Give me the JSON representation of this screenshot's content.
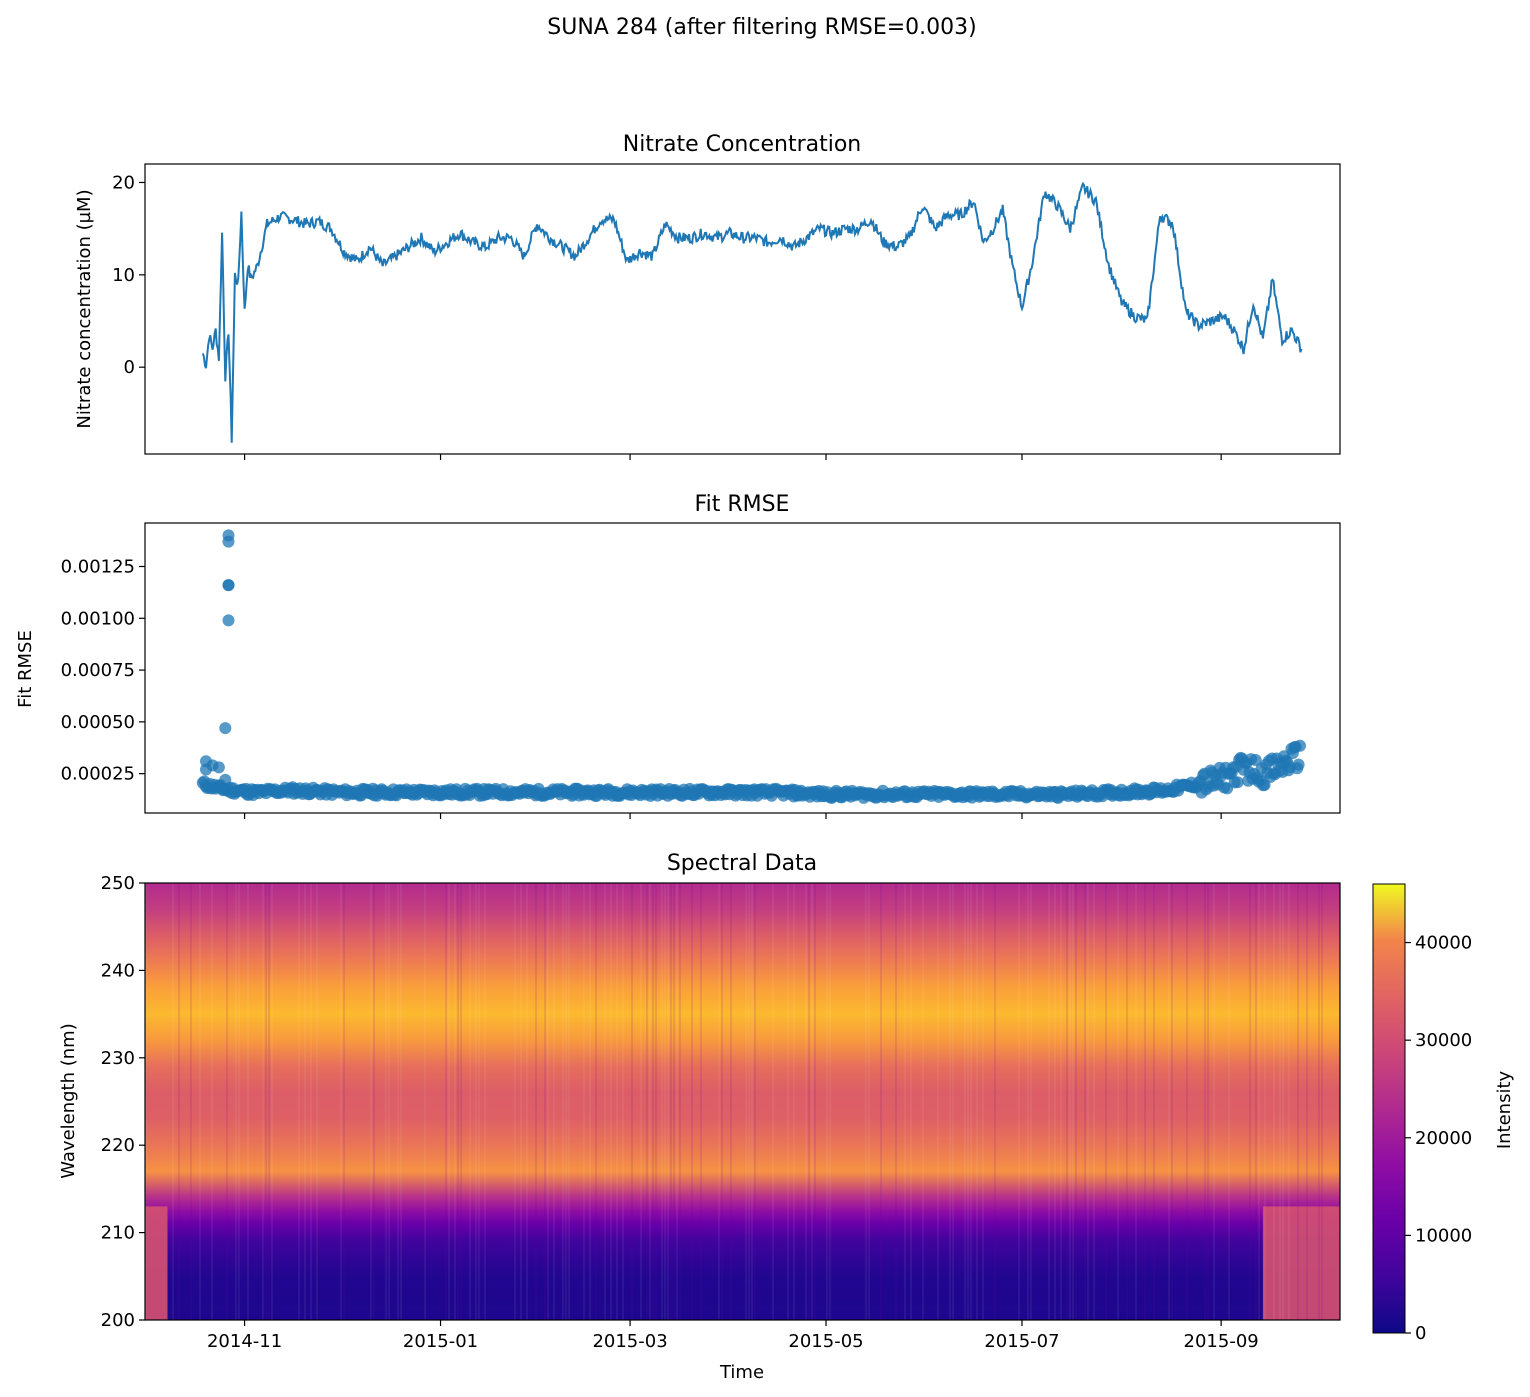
{
  "figure": {
    "suptitle": "SUNA 284 (after filtering RMSE=0.003)"
  },
  "chart_data": [
    {
      "type": "line",
      "title": "Nitrate Concentration",
      "xlabel": "",
      "ylabel": "Nitrate concentration (µM)",
      "ylim": [
        -9.4,
        22.0
      ],
      "xlim": [
        "2014-10-01",
        "2015-10-08"
      ],
      "yticks": [
        0,
        10,
        20
      ],
      "ytick_labels": [
        "0",
        "10",
        "20"
      ],
      "color": "#1f77b4",
      "series": [
        {
          "name": "nitrate",
          "x": [
            "2014-10-19",
            "2014-10-20",
            "2014-10-21",
            "2014-10-22",
            "2014-10-23",
            "2014-10-24",
            "2014-10-25",
            "2014-10-26",
            "2014-10-27",
            "2014-10-28",
            "2014-10-29",
            "2014-10-30",
            "2014-10-31",
            "2014-11-01",
            "2014-11-02",
            "2014-11-03",
            "2014-11-05",
            "2014-11-08",
            "2014-11-12",
            "2014-11-16",
            "2014-11-20",
            "2014-11-24",
            "2014-11-28",
            "2014-12-02",
            "2014-12-06",
            "2014-12-10",
            "2014-12-14",
            "2014-12-18",
            "2014-12-22",
            "2014-12-26",
            "2014-12-30",
            "2015-01-03",
            "2015-01-07",
            "2015-01-11",
            "2015-01-15",
            "2015-01-19",
            "2015-01-23",
            "2015-01-27",
            "2015-01-31",
            "2015-02-04",
            "2015-02-08",
            "2015-02-12",
            "2015-02-16",
            "2015-02-20",
            "2015-02-24",
            "2015-02-28",
            "2015-03-04",
            "2015-03-08",
            "2015-03-12",
            "2015-03-16",
            "2015-03-20",
            "2015-03-24",
            "2015-03-28",
            "2015-04-01",
            "2015-04-05",
            "2015-04-09",
            "2015-04-13",
            "2015-04-17",
            "2015-04-21",
            "2015-04-25",
            "2015-04-29",
            "2015-05-03",
            "2015-05-07",
            "2015-05-11",
            "2015-05-15",
            "2015-05-19",
            "2015-05-23",
            "2015-05-27",
            "2015-05-31",
            "2015-06-04",
            "2015-06-08",
            "2015-06-12",
            "2015-06-16",
            "2015-06-19",
            "2015-06-22",
            "2015-06-25",
            "2015-06-28",
            "2015-07-01",
            "2015-07-04",
            "2015-07-08",
            "2015-07-12",
            "2015-07-16",
            "2015-07-20",
            "2015-07-24",
            "2015-07-28",
            "2015-08-01",
            "2015-08-05",
            "2015-08-09",
            "2015-08-13",
            "2015-08-17",
            "2015-08-21",
            "2015-08-25",
            "2015-08-29",
            "2015-09-02",
            "2015-09-05",
            "2015-09-08",
            "2015-09-11",
            "2015-09-14",
            "2015-09-17",
            "2015-09-20",
            "2015-09-23",
            "2015-09-26"
          ],
          "y": [
            1.5,
            0.2,
            3.5,
            2.0,
            4.0,
            1.0,
            14.5,
            -1.0,
            4.0,
            -7.8,
            10.0,
            9.0,
            16.8,
            6.0,
            11.0,
            9.5,
            11.0,
            15.5,
            16.3,
            16.0,
            15.5,
            15.8,
            15.0,
            12.5,
            11.5,
            13.0,
            11.0,
            12.0,
            13.0,
            14.0,
            12.5,
            13.5,
            14.5,
            13.5,
            13.0,
            14.0,
            14.0,
            12.0,
            15.5,
            14.0,
            13.0,
            12.0,
            14.0,
            16.0,
            16.0,
            11.5,
            12.5,
            12.0,
            15.5,
            14.0,
            14.0,
            14.5,
            14.0,
            14.5,
            14.0,
            14.0,
            13.5,
            14.0,
            13.0,
            14.0,
            15.0,
            14.5,
            15.0,
            15.0,
            16.0,
            13.5,
            13.0,
            14.0,
            17.5,
            15.0,
            16.5,
            16.5,
            18.0,
            13.5,
            15.0,
            17.0,
            11.0,
            6.5,
            11.0,
            19.0,
            17.5,
            15.0,
            19.5,
            18.0,
            11.0,
            7.0,
            5.5,
            5.0,
            16.5,
            15.5,
            6.0,
            4.5,
            5.0,
            5.5,
            4.0,
            2.0,
            7.0,
            3.0,
            9.5,
            3.0,
            4.0,
            2.0
          ]
        }
      ]
    },
    {
      "type": "scatter",
      "title": "Fit RMSE",
      "xlabel": "",
      "ylabel": "Fit RMSE",
      "ylim": [
        6e-05,
        0.00146
      ],
      "xlim": [
        "2014-10-01",
        "2015-10-08"
      ],
      "yticks": [
        0.00025,
        0.0005,
        0.00075,
        0.001,
        0.00125
      ],
      "ytick_labels": [
        "0.00025",
        "0.00050",
        "0.00075",
        "0.00100",
        "0.00125"
      ],
      "color": "#1f77b4",
      "outliers": {
        "x": [
          "2014-10-20",
          "2014-10-20",
          "2014-10-22",
          "2014-10-24",
          "2014-10-26",
          "2014-10-26",
          "2014-10-27",
          "2014-10-27",
          "2014-10-27",
          "2014-10-27",
          "2014-10-27"
        ],
        "y": [
          0.00031,
          0.00027,
          0.00029,
          0.00028,
          0.00047,
          0.00022,
          0.00099,
          0.00116,
          0.00116,
          0.00137,
          0.0014
        ]
      },
      "baseline": {
        "x": [
          "2014-10-19",
          "2014-10-24",
          "2014-10-28",
          "2014-11-05",
          "2014-11-15",
          "2014-12-01",
          "2014-12-15",
          "2015-01-01",
          "2015-01-15",
          "2015-02-01",
          "2015-02-15",
          "2015-03-01",
          "2015-03-15",
          "2015-04-01",
          "2015-04-15",
          "2015-05-01",
          "2015-05-15",
          "2015-06-01",
          "2015-06-15",
          "2015-07-01",
          "2015-07-15",
          "2015-08-01",
          "2015-08-15",
          "2015-08-25",
          "2015-09-01",
          "2015-09-08",
          "2015-09-15",
          "2015-09-22",
          "2015-09-26"
        ],
        "y": [
          0.0002,
          0.00018,
          0.00017,
          0.00016,
          0.00017,
          0.00016,
          0.00016,
          0.00016,
          0.00016,
          0.00016,
          0.00016,
          0.00016,
          0.00016,
          0.00016,
          0.00016,
          0.00015,
          0.00015,
          0.00015,
          0.00015,
          0.00015,
          0.00015,
          0.00016,
          0.00017,
          0.0002,
          0.00022,
          0.00028,
          0.00025,
          0.00031,
          0.00034
        ]
      }
    },
    {
      "type": "heatmap",
      "title": "Spectral Data",
      "xlabel": "Time",
      "ylabel": "Wavelength (nm)",
      "xlim": [
        "2014-10-01",
        "2015-10-08"
      ],
      "ylim": [
        200,
        250
      ],
      "xticks": [
        "2014-11-01",
        "2015-01-01",
        "2015-03-01",
        "2015-05-01",
        "2015-07-01",
        "2015-09-01"
      ],
      "xtick_labels": [
        "2014-11",
        "2015-01",
        "2015-03",
        "2015-05",
        "2015-07",
        "2015-09"
      ],
      "yticks": [
        200,
        210,
        220,
        230,
        240,
        250
      ],
      "ytick_labels": [
        "200",
        "210",
        "220",
        "230",
        "240",
        "250"
      ],
      "colormap": "plasma",
      "colorbar": {
        "label": "Intensity",
        "min": 0,
        "max": 46000,
        "ticks": [
          0,
          10000,
          20000,
          30000,
          40000
        ],
        "tick_labels": [
          "0",
          "10000",
          "20000",
          "30000",
          "40000"
        ]
      },
      "wavelength_profile": {
        "wavelength": [
          200,
          205,
          209,
          211,
          212.5,
          214,
          217,
          220,
          223,
          226,
          229,
          232,
          235,
          238,
          241,
          244,
          247,
          250
        ],
        "intensity": [
          1500,
          1800,
          4500,
          9000,
          14000,
          19000,
          34000,
          30000,
          27000,
          26500,
          29000,
          35000,
          39000,
          36000,
          31000,
          26500,
          21500,
          18500
        ]
      },
      "low_band_bright_periods": [
        [
          "2014-10-01",
          "2014-10-08"
        ],
        [
          "2015-09-14",
          "2015-10-08"
        ]
      ]
    }
  ]
}
